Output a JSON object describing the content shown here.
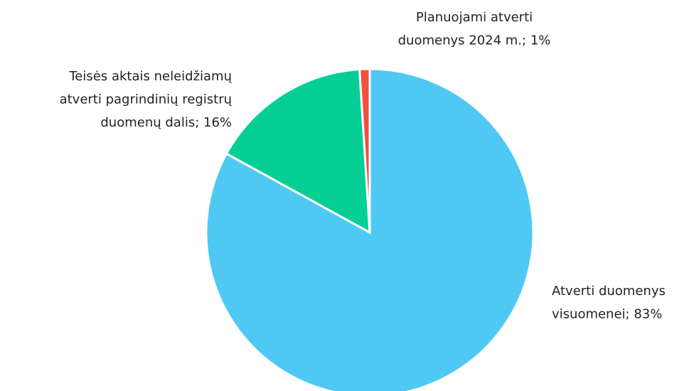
{
  "chart_data": {
    "type": "pie",
    "values": [
      83,
      16,
      1
    ],
    "value_labels": [
      [
        "Atverti duomenys",
        "visuomenei; 83%"
      ],
      [
        "Teisės aktais neleidžiamų",
        "atverti pagrindinių registrų",
        "duomenų dalis; 16%"
      ],
      [
        "Planuojami atverti",
        "duomenys 2024 m.; 1%"
      ]
    ],
    "colors": [
      "#4fc9f3",
      "#05cf94",
      "#f0503c"
    ]
  }
}
